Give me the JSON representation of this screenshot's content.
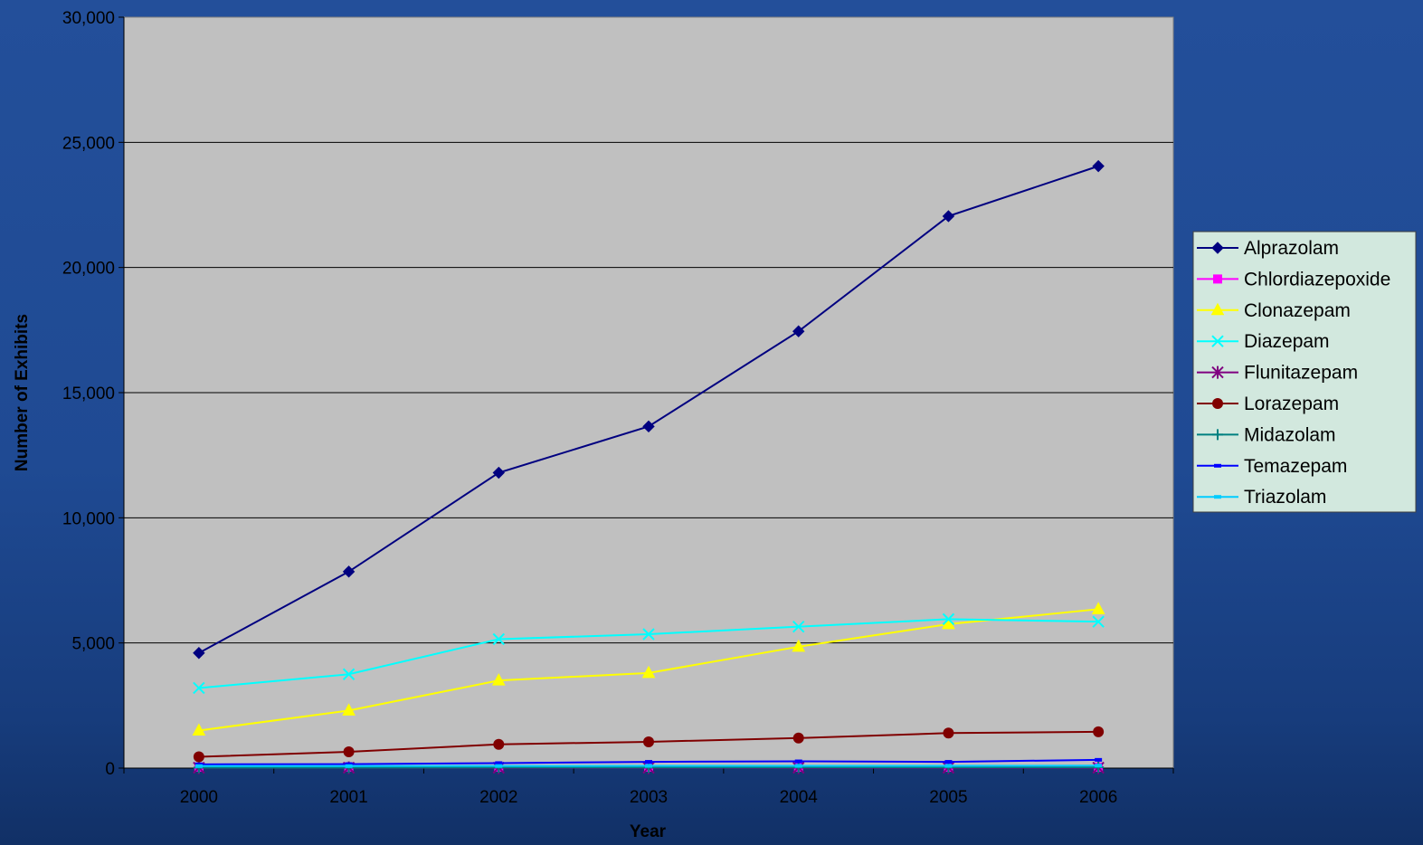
{
  "chart_data": {
    "type": "line",
    "xlabel": "Year",
    "ylabel": "Number of Exhibits",
    "ylim": [
      0,
      30000
    ],
    "yticks": [
      "0",
      "5,000",
      "10,000",
      "15,000",
      "20,000",
      "25,000",
      "30,000"
    ],
    "ytick_values": [
      0,
      5000,
      10000,
      15000,
      20000,
      25000,
      30000
    ],
    "categories": [
      "2000",
      "2001",
      "2002",
      "2003",
      "2004",
      "2005",
      "2006"
    ],
    "grid": true,
    "legend_position": "right",
    "plot_background": "#c0c0c0",
    "series": [
      {
        "name": "Alprazolam",
        "color": "#000080",
        "marker": "diamond",
        "values": [
          4600,
          7850,
          11800,
          13650,
          17450,
          22050,
          24050
        ]
      },
      {
        "name": "Chlordiazepoxide",
        "color": "#ff00ff",
        "marker": "square",
        "values": [
          40,
          45,
          40,
          40,
          40,
          35,
          35
        ]
      },
      {
        "name": "Clonazepam",
        "color": "#ffff00",
        "marker": "triangle",
        "values": [
          1500,
          2300,
          3500,
          3800,
          4850,
          5750,
          6350
        ]
      },
      {
        "name": "Diazepam",
        "color": "#00ffff",
        "marker": "x",
        "values": [
          3200,
          3750,
          5150,
          5350,
          5650,
          5950,
          5850
        ]
      },
      {
        "name": "Flunitazepam",
        "color": "#800080",
        "marker": "star",
        "values": [
          15,
          15,
          15,
          15,
          15,
          15,
          15
        ]
      },
      {
        "name": "Lorazepam",
        "color": "#800000",
        "marker": "circle",
        "values": [
          450,
          650,
          950,
          1050,
          1200,
          1400,
          1450
        ]
      },
      {
        "name": "Midazolam",
        "color": "#008080",
        "marker": "plus",
        "values": [
          20,
          20,
          25,
          25,
          30,
          30,
          30
        ]
      },
      {
        "name": "Temazepam",
        "color": "#0000ff",
        "marker": "dash",
        "values": [
          150,
          160,
          200,
          250,
          270,
          250,
          330
        ]
      },
      {
        "name": "Triazolam",
        "color": "#00ccff",
        "marker": "dash",
        "values": [
          80,
          80,
          85,
          90,
          90,
          90,
          100
        ]
      }
    ]
  }
}
